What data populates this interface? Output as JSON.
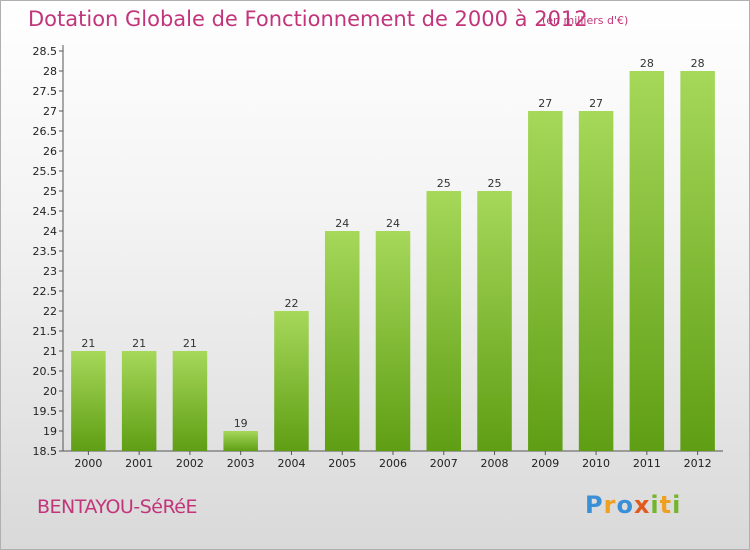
{
  "title": "Dotation Globale de Fonctionnement de 2000 à 2012",
  "subtitle": "(en milliers d'€)",
  "commune": "BENTAYOU-SéRéE",
  "logo": {
    "letters": [
      "P",
      "r",
      "o",
      "x",
      "i",
      "t",
      "i"
    ],
    "colors": [
      "#3a8fd6",
      "#f0a020",
      "#3a8fd6",
      "#e05a20",
      "#74b52e",
      "#f0a020",
      "#74b52e"
    ]
  },
  "colors": {
    "bar_top": "#a6d85a",
    "bar_bottom": "#5f9e14",
    "accent": "#c2357a"
  },
  "chart_data": {
    "type": "bar",
    "categories": [
      "2000",
      "2001",
      "2002",
      "2003",
      "2004",
      "2005",
      "2006",
      "2007",
      "2008",
      "2009",
      "2010",
      "2011",
      "2012"
    ],
    "values": [
      21,
      21,
      21,
      19,
      22,
      24,
      24,
      25,
      25,
      27,
      27,
      28,
      28
    ],
    "ylim": [
      18.5,
      28.5
    ],
    "ytick_step": 0.5,
    "grid": false,
    "data_labels": true
  }
}
